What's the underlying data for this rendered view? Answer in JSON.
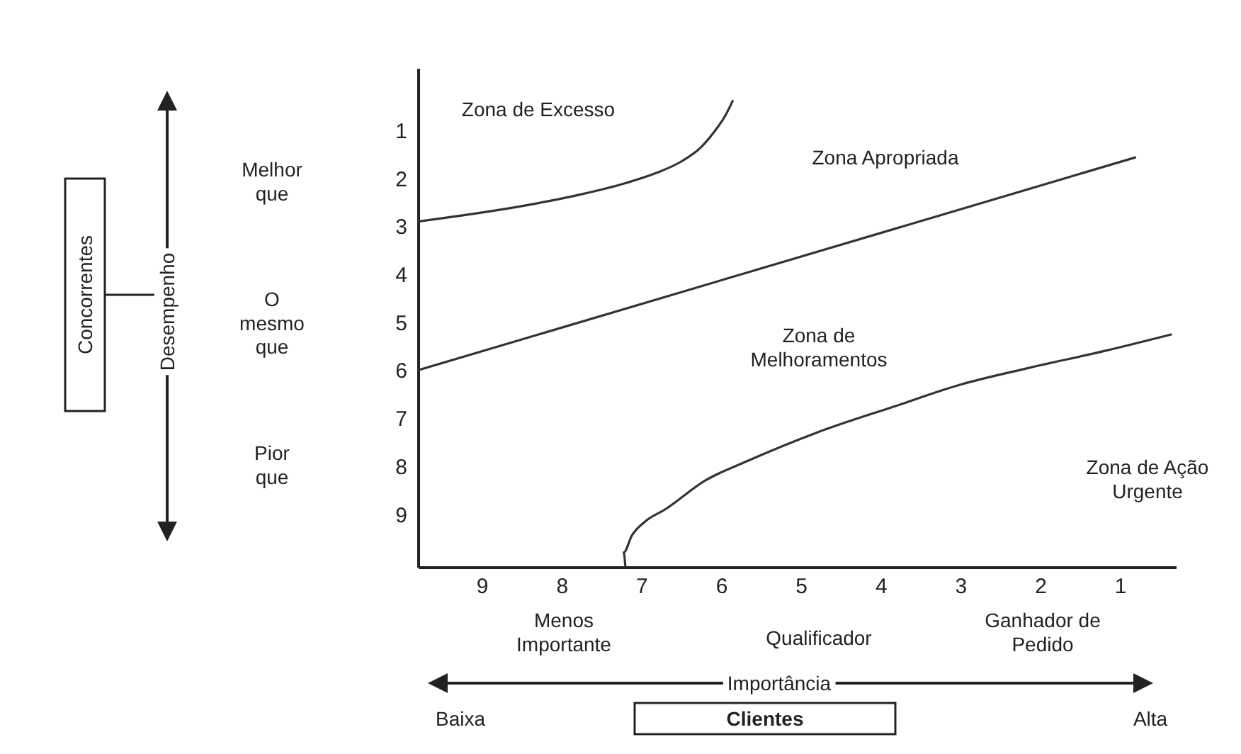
{
  "chart_data": {
    "type": "line",
    "xlim": [
      9.8,
      0.3
    ],
    "ylim": [
      10.1,
      -0.3
    ],
    "xticks": [
      9,
      8,
      7,
      6,
      5,
      4,
      3,
      2,
      1
    ],
    "yticks": [
      1,
      2,
      3,
      4,
      5,
      6,
      7,
      8,
      9
    ],
    "series": [
      {
        "color": "#333333",
        "x": [
          9.8,
          8.4,
          7.8,
          7.2,
          6.8,
          6.5,
          6.25,
          6.1,
          5.95,
          5.85
        ],
        "values": [
          2.9,
          2.55,
          2.35,
          2.1,
          1.88,
          1.65,
          1.35,
          1.06,
          0.7,
          0.37
        ]
      },
      {
        "color": "#333333",
        "x": [
          9.8,
          0.8
        ],
        "values": [
          6.0,
          1.56
        ]
      },
      {
        "color": "#333333",
        "x": [
          7.2,
          7.22,
          7.12,
          6.95,
          6.7,
          6.2,
          5.68,
          4.8,
          3.82,
          3.0,
          2.14,
          1.2,
          0.35
        ],
        "values": [
          10.1,
          9.8,
          9.45,
          9.15,
          8.9,
          8.3,
          7.9,
          7.3,
          6.75,
          6.3,
          5.95,
          5.6,
          5.25
        ]
      }
    ],
    "annotations": [
      "Zona de Excesso",
      "Zona Apropriada",
      "Zona de Melhoramentos",
      "Zona de Ação Urgente",
      "Melhor que",
      "O mesmo que",
      "Pior que",
      "Desempenho",
      "Concorrentes",
      "Menos Importante",
      "Qualificador",
      "Ganhador de Pedido",
      "Importância",
      "Baixa",
      "Clientes",
      "Alta"
    ]
  }
}
